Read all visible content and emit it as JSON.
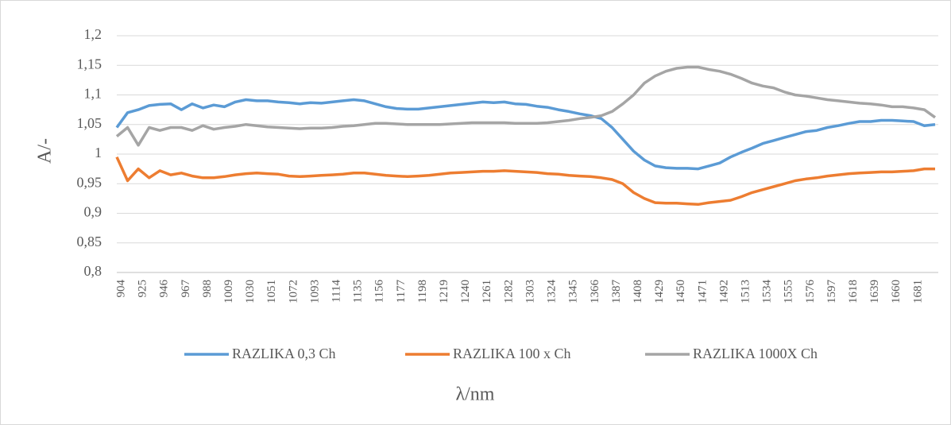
{
  "chart_data": {
    "type": "line",
    "y_label": "A/-",
    "x_label": "λ/nm",
    "categories": [
      904,
      null,
      925,
      null,
      946,
      null,
      967,
      null,
      988,
      null,
      1009,
      null,
      1030,
      null,
      1051,
      null,
      1072,
      null,
      1093,
      null,
      1114,
      null,
      1135,
      null,
      1156,
      null,
      1177,
      null,
      1198,
      null,
      1219,
      null,
      1240,
      null,
      1261,
      null,
      1282,
      null,
      1303,
      null,
      1324,
      null,
      1345,
      null,
      1366,
      null,
      1387,
      null,
      1408,
      null,
      1429,
      null,
      1450,
      null,
      1471,
      null,
      1492,
      null,
      1513,
      null,
      1534,
      null,
      1555,
      null,
      1576,
      null,
      1597,
      null,
      1618,
      null,
      1639,
      null,
      1660,
      null,
      1681,
      null,
      null
    ],
    "series": [
      {
        "name": "RAZLIKA 0,3 Ch",
        "color": "#5b9bd5",
        "values": [
          1.045,
          1.07,
          1.075,
          1.082,
          1.084,
          1.085,
          1.075,
          1.085,
          1.078,
          1.083,
          1.08,
          1.088,
          1.092,
          1.09,
          1.09,
          1.088,
          1.087,
          1.085,
          1.087,
          1.086,
          1.088,
          1.09,
          1.092,
          1.09,
          1.085,
          1.08,
          1.077,
          1.076,
          1.076,
          1.078,
          1.08,
          1.082,
          1.084,
          1.086,
          1.088,
          1.087,
          1.088,
          1.085,
          1.084,
          1.081,
          1.079,
          1.075,
          1.072,
          1.068,
          1.065,
          1.06,
          1.045,
          1.025,
          1.005,
          0.99,
          0.98,
          0.977,
          0.976,
          0.976,
          0.975,
          0.98,
          0.985,
          0.995,
          1.003,
          1.01,
          1.018,
          1.023,
          1.028,
          1.033,
          1.038,
          1.04,
          1.045,
          1.048,
          1.052,
          1.055,
          1.055,
          1.057,
          1.057,
          1.056,
          1.055,
          1.048,
          1.05
        ]
      },
      {
        "name": "RAZLIKA 100 x Ch",
        "color": "#ed7d31",
        "values": [
          0.995,
          0.955,
          0.975,
          0.96,
          0.972,
          0.965,
          0.968,
          0.963,
          0.96,
          0.96,
          0.962,
          0.965,
          0.967,
          0.968,
          0.967,
          0.966,
          0.963,
          0.962,
          0.963,
          0.964,
          0.965,
          0.966,
          0.968,
          0.968,
          0.966,
          0.964,
          0.963,
          0.962,
          0.963,
          0.964,
          0.966,
          0.968,
          0.969,
          0.97,
          0.971,
          0.971,
          0.972,
          0.971,
          0.97,
          0.969,
          0.967,
          0.966,
          0.964,
          0.963,
          0.962,
          0.96,
          0.957,
          0.95,
          0.935,
          0.925,
          0.918,
          0.917,
          0.917,
          0.916,
          0.915,
          0.918,
          0.92,
          0.922,
          0.928,
          0.935,
          0.94,
          0.945,
          0.95,
          0.955,
          0.958,
          0.96,
          0.963,
          0.965,
          0.967,
          0.968,
          0.969,
          0.97,
          0.97,
          0.971,
          0.972,
          0.975,
          0.975
        ]
      },
      {
        "name": "RAZLIKA 1000X Ch",
        "color": "#a5a5a5",
        "values": [
          1.03,
          1.045,
          1.015,
          1.045,
          1.04,
          1.045,
          1.045,
          1.04,
          1.048,
          1.042,
          1.045,
          1.047,
          1.05,
          1.048,
          1.046,
          1.045,
          1.044,
          1.043,
          1.044,
          1.044,
          1.045,
          1.047,
          1.048,
          1.05,
          1.052,
          1.052,
          1.051,
          1.05,
          1.05,
          1.05,
          1.05,
          1.051,
          1.052,
          1.053,
          1.053,
          1.053,
          1.053,
          1.052,
          1.052,
          1.052,
          1.053,
          1.055,
          1.057,
          1.06,
          1.062,
          1.065,
          1.072,
          1.085,
          1.1,
          1.12,
          1.132,
          1.14,
          1.145,
          1.147,
          1.147,
          1.143,
          1.14,
          1.135,
          1.128,
          1.12,
          1.115,
          1.112,
          1.105,
          1.1,
          1.098,
          1.095,
          1.092,
          1.09,
          1.088,
          1.086,
          1.085,
          1.083,
          1.08,
          1.08,
          1.078,
          1.075,
          1.062
        ]
      }
    ],
    "ylim": [
      0.8,
      1.2
    ],
    "yticks": [
      {
        "value": 0.8,
        "label": "0,8"
      },
      {
        "value": 0.85,
        "label": "0,85"
      },
      {
        "value": 0.9,
        "label": "0,9"
      },
      {
        "value": 0.95,
        "label": "0,95"
      },
      1,
      {
        "value": 1.05,
        "label": "1,05"
      },
      {
        "value": 1.1,
        "label": "1,1"
      },
      {
        "value": 1.15,
        "label": "1,15"
      },
      {
        "value": 1.2,
        "label": "1,2"
      }
    ],
    "grid": true,
    "legend": "bottom"
  }
}
